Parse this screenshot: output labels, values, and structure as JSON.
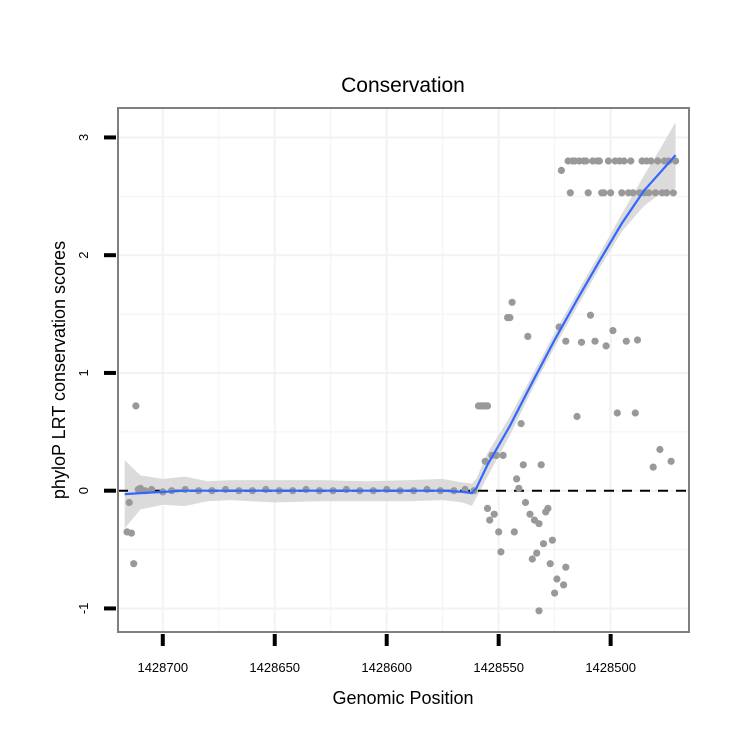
{
  "chart_data": {
    "type": "scatter",
    "title": "Conservation",
    "xlabel": "Genomic Position",
    "ylabel": "phyloP LRT conservation scores",
    "x_reversed": true,
    "xlim": [
      1428720,
      1428465
    ],
    "ylim": [
      -1.2,
      3.25
    ],
    "x_ticks": [
      1428700,
      1428650,
      1428600,
      1428550,
      1428500
    ],
    "x_tick_labels": [
      "1428700",
      "1428650",
      "1428600",
      "1428550",
      "1428500"
    ],
    "y_ticks": [
      -1,
      0,
      1,
      2,
      3
    ],
    "y_tick_labels": [
      "-1",
      "0",
      "1",
      "2",
      "3"
    ],
    "grid": true,
    "reference_line": {
      "y": 0,
      "style": "dashed",
      "color": "#000000"
    },
    "colors": {
      "points": "#999999",
      "smooth": "#3366ff",
      "band": "#d9d9d9",
      "panel_border": "#7f7f7f",
      "grid": "#f2f2f2"
    },
    "points": [
      [
        1428716,
        -0.35
      ],
      [
        1428715,
        -0.1
      ],
      [
        1428714,
        -0.36
      ],
      [
        1428713,
        -0.62
      ],
      [
        1428712,
        0.72
      ],
      [
        1428711,
        0.01
      ],
      [
        1428710,
        0.02
      ],
      [
        1428708,
        0.0
      ],
      [
        1428705,
        0.01
      ],
      [
        1428700,
        -0.01
      ],
      [
        1428696,
        0.0
      ],
      [
        1428690,
        0.01
      ],
      [
        1428684,
        0.0
      ],
      [
        1428678,
        0.0
      ],
      [
        1428672,
        0.01
      ],
      [
        1428666,
        0.0
      ],
      [
        1428660,
        0.0
      ],
      [
        1428654,
        0.01
      ],
      [
        1428648,
        0.0
      ],
      [
        1428642,
        0.0
      ],
      [
        1428636,
        0.01
      ],
      [
        1428630,
        0.0
      ],
      [
        1428624,
        0.0
      ],
      [
        1428618,
        0.01
      ],
      [
        1428612,
        0.0
      ],
      [
        1428606,
        0.0
      ],
      [
        1428600,
        0.01
      ],
      [
        1428594,
        0.0
      ],
      [
        1428588,
        0.0
      ],
      [
        1428582,
        0.01
      ],
      [
        1428576,
        0.0
      ],
      [
        1428570,
        0.0
      ],
      [
        1428565,
        0.01
      ],
      [
        1428561,
        0.0
      ],
      [
        1428559,
        0.72
      ],
      [
        1428558,
        0.72
      ],
      [
        1428557,
        0.72
      ],
      [
        1428556,
        0.72
      ],
      [
        1428555,
        0.72
      ],
      [
        1428556,
        0.25
      ],
      [
        1428555,
        -0.15
      ],
      [
        1428554,
        -0.25
      ],
      [
        1428553,
        0.3
      ],
      [
        1428552,
        -0.2
      ],
      [
        1428551,
        0.3
      ],
      [
        1428550,
        -0.35
      ],
      [
        1428549,
        -0.52
      ],
      [
        1428548,
        0.3
      ],
      [
        1428546,
        1.47
      ],
      [
        1428545,
        1.47
      ],
      [
        1428544,
        1.6
      ],
      [
        1428543,
        -0.35
      ],
      [
        1428542,
        0.1
      ],
      [
        1428541,
        0.02
      ],
      [
        1428540,
        0.57
      ],
      [
        1428539,
        0.22
      ],
      [
        1428538,
        -0.1
      ],
      [
        1428537,
        1.31
      ],
      [
        1428536,
        -0.2
      ],
      [
        1428535,
        -0.58
      ],
      [
        1428534,
        -0.25
      ],
      [
        1428533,
        -0.53
      ],
      [
        1428532,
        -0.28
      ],
      [
        1428531,
        0.22
      ],
      [
        1428530,
        -0.45
      ],
      [
        1428529,
        -0.18
      ],
      [
        1428528,
        -0.15
      ],
      [
        1428527,
        -0.62
      ],
      [
        1428526,
        -0.42
      ],
      [
        1428525,
        -0.87
      ],
      [
        1428524,
        -0.75
      ],
      [
        1428523,
        1.39
      ],
      [
        1428522,
        2.72
      ],
      [
        1428521,
        -0.8
      ],
      [
        1428520,
        -0.65
      ],
      [
        1428520,
        1.27
      ],
      [
        1428519,
        2.8
      ],
      [
        1428518,
        2.53
      ],
      [
        1428517,
        2.8
      ],
      [
        1428516,
        2.8
      ],
      [
        1428515,
        0.63
      ],
      [
        1428514,
        2.8
      ],
      [
        1428513,
        1.26
      ],
      [
        1428512,
        2.8
      ],
      [
        1428511,
        2.8
      ],
      [
        1428510,
        2.53
      ],
      [
        1428509,
        1.49
      ],
      [
        1428508,
        2.8
      ],
      [
        1428507,
        1.27
      ],
      [
        1428506,
        2.8
      ],
      [
        1428505,
        2.8
      ],
      [
        1428504,
        2.53
      ],
      [
        1428503,
        2.53
      ],
      [
        1428502,
        1.23
      ],
      [
        1428501,
        2.8
      ],
      [
        1428500,
        2.53
      ],
      [
        1428499,
        1.36
      ],
      [
        1428498,
        2.8
      ],
      [
        1428497,
        0.66
      ],
      [
        1428496,
        2.8
      ],
      [
        1428495,
        2.53
      ],
      [
        1428494,
        2.8
      ],
      [
        1428493,
        1.27
      ],
      [
        1428492,
        2.53
      ],
      [
        1428491,
        2.8
      ],
      [
        1428490,
        2.53
      ],
      [
        1428489,
        0.66
      ],
      [
        1428488,
        1.28
      ],
      [
        1428487,
        2.53
      ],
      [
        1428486,
        2.8
      ],
      [
        1428485,
        2.53
      ],
      [
        1428484,
        2.8
      ],
      [
        1428483,
        2.53
      ],
      [
        1428482,
        2.8
      ],
      [
        1428481,
        0.2
      ],
      [
        1428480,
        2.53
      ],
      [
        1428479,
        2.8
      ],
      [
        1428478,
        0.35
      ],
      [
        1428477,
        2.53
      ],
      [
        1428476,
        2.8
      ],
      [
        1428475,
        2.53
      ],
      [
        1428474,
        2.8
      ],
      [
        1428473,
        0.25
      ],
      [
        1428472,
        2.53
      ],
      [
        1428471,
        2.8
      ],
      [
        1428532,
        -1.02
      ]
    ],
    "smooth_line": {
      "x": [
        1428717,
        1428710,
        1428700,
        1428690,
        1428680,
        1428670,
        1428650,
        1428630,
        1428610,
        1428590,
        1428575,
        1428566,
        1428562,
        1428560,
        1428555,
        1428545,
        1428535,
        1428525,
        1428515,
        1428505,
        1428495,
        1428485,
        1428478,
        1428471
      ],
      "y": [
        -0.03,
        -0.02,
        -0.01,
        0.0,
        0.0,
        0.0,
        0.0,
        0.0,
        0.0,
        0.0,
        0.0,
        -0.01,
        -0.02,
        0.02,
        0.22,
        0.55,
        0.92,
        1.28,
        1.62,
        1.95,
        2.27,
        2.55,
        2.7,
        2.85
      ]
    },
    "smooth_band": {
      "x": [
        1428717,
        1428710,
        1428700,
        1428690,
        1428680,
        1428670,
        1428650,
        1428630,
        1428610,
        1428590,
        1428575,
        1428566,
        1428562,
        1428560,
        1428555,
        1428545,
        1428535,
        1428525,
        1428515,
        1428505,
        1428495,
        1428485,
        1428478,
        1428471
      ],
      "lower": [
        -0.32,
        -0.16,
        -0.12,
        -0.13,
        -0.09,
        -0.08,
        -0.1,
        -0.09,
        -0.09,
        -0.09,
        -0.08,
        -0.1,
        -0.13,
        -0.06,
        0.12,
        0.47,
        0.86,
        1.22,
        1.56,
        1.89,
        2.2,
        2.42,
        2.52,
        2.57
      ],
      "upper": [
        0.26,
        0.13,
        0.1,
        0.12,
        0.08,
        0.09,
        0.09,
        0.09,
        0.08,
        0.09,
        0.1,
        0.07,
        0.06,
        0.1,
        0.32,
        0.63,
        0.98,
        1.34,
        1.68,
        2.01,
        2.35,
        2.68,
        2.9,
        3.13
      ]
    }
  }
}
